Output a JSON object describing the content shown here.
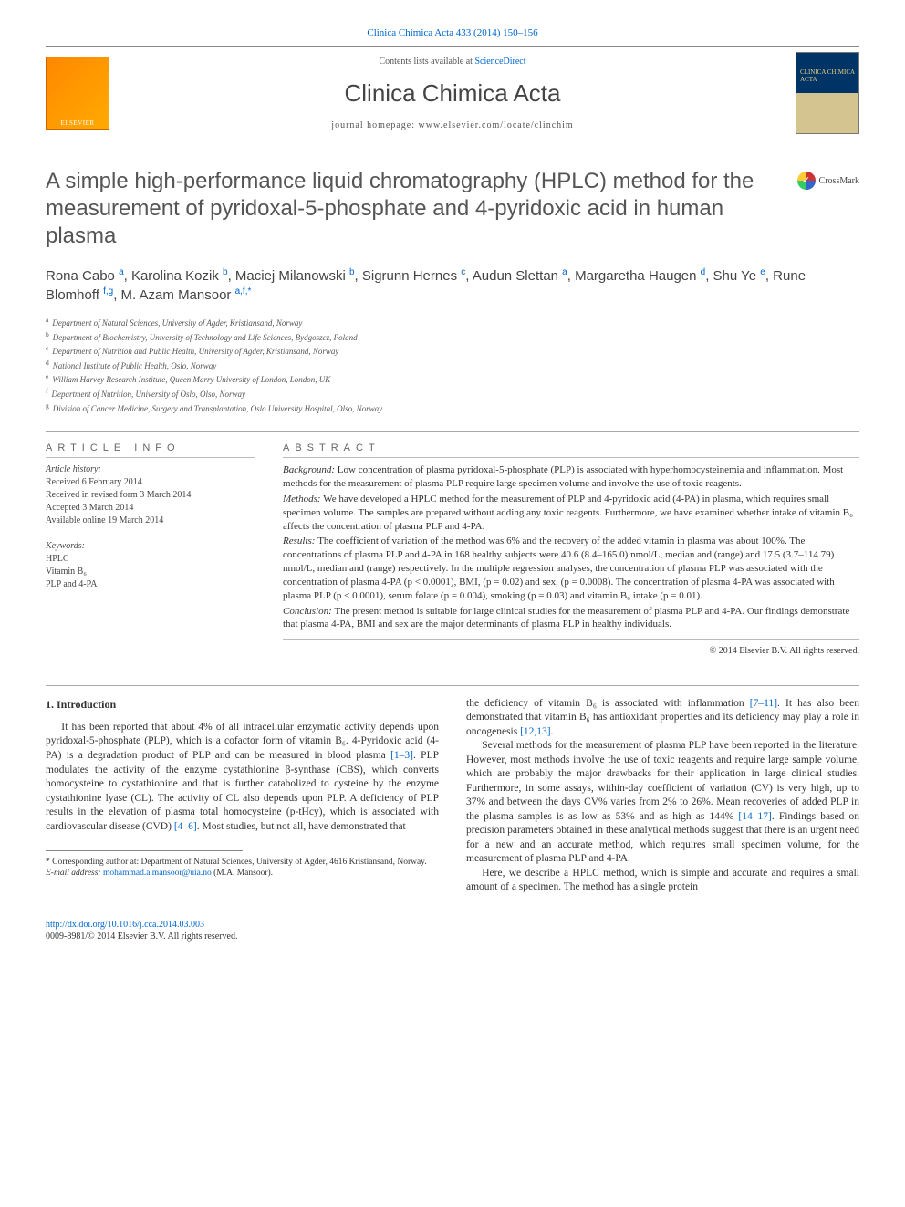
{
  "top_citation": "Clinica Chimica Acta 433 (2014) 150–156",
  "header": {
    "contents_line_pre": "Contents lists available at ",
    "contents_link": "ScienceDirect",
    "journal_name": "Clinica Chimica Acta",
    "homepage_pre": "journal homepage: ",
    "homepage_url": "www.elsevier.com/locate/clinchim"
  },
  "crossmark_label": "CrossMark",
  "title": "A simple high-performance liquid chromatography (HPLC) method for the measurement of pyridoxal-5-phosphate and 4-pyridoxic acid in human plasma",
  "authors_html": "Rona Cabo <sup>a</sup>, Karolina Kozik <sup>b</sup>, Maciej Milanowski <sup>b</sup>, Sigrunn Hernes <sup>c</sup>, Audun Slettan <sup>a</sup>, Margaretha Haugen <sup>d</sup>, Shu Ye <sup>e</sup>, Rune Blomhoff <sup>f,g</sup>, M. Azam Mansoor <sup>a,f,*</sup>",
  "affiliations": [
    {
      "sup": "a",
      "text": "Department of Natural Sciences, University of Agder, Kristiansand, Norway"
    },
    {
      "sup": "b",
      "text": "Department of Biochemistry, University of Technology and Life Sciences, Bydgoszcz, Poland"
    },
    {
      "sup": "c",
      "text": "Department of Nutrition and Public Health, University of Agder, Kristiansand, Norway"
    },
    {
      "sup": "d",
      "text": "National Institute of Public Health, Oslo, Norway"
    },
    {
      "sup": "e",
      "text": "William Harvey Research Institute, Queen Marry University of London, London, UK"
    },
    {
      "sup": "f",
      "text": "Department of Nutrition, University of Oslo, Olso, Norway"
    },
    {
      "sup": "g",
      "text": "Division of Cancer Medicine, Surgery and Transplantation, Oslo University Hospital, Olso, Norway"
    }
  ],
  "article_info": {
    "heading": "article info",
    "history_label": "Article history:",
    "history": [
      "Received 6 February 2014",
      "Received in revised form 3 March 2014",
      "Accepted 3 March 2014",
      "Available online 19 March 2014"
    ],
    "keywords_label": "Keywords:",
    "keywords": [
      "HPLC",
      "Vitamin B₆",
      "PLP and 4-PA"
    ]
  },
  "abstract": {
    "heading": "abstract",
    "background_label": "Background: ",
    "background": "Low concentration of plasma pyridoxal-5-phosphate (PLP) is associated with hyperhomocysteinemia and inflammation. Most methods for the measurement of plasma PLP require large specimen volume and involve the use of toxic reagents.",
    "methods_label": "Methods: ",
    "methods": "We have developed a HPLC method for the measurement of PLP and 4-pyridoxic acid (4-PA) in plasma, which requires small specimen volume. The samples are prepared without adding any toxic reagents. Furthermore, we have examined whether intake of vitamin B₆ affects the concentration of plasma PLP and 4-PA.",
    "results_label": "Results: ",
    "results": "The coefficient of variation of the method was 6% and the recovery of the added vitamin in plasma was about 100%. The concentrations of plasma PLP and 4-PA in 168 healthy subjects were 40.6 (8.4–165.0) nmol/L, median and (range) and 17.5 (3.7–114.79) nmol/L, median and (range) respectively. In the multiple regression analyses, the concentration of plasma PLP was associated with the concentration of plasma 4-PA (p < 0.0001), BMI, (p = 0.02) and sex, (p = 0.0008). The concentration of plasma 4-PA was associated with plasma PLP (p < 0.0001), serum folate (p = 0.004), smoking (p = 0.03) and vitamin B₆ intake (p = 0.01).",
    "conclusion_label": "Conclusion: ",
    "conclusion": "The present method is suitable for large clinical studies for the measurement of plasma PLP and 4-PA. Our findings demonstrate that plasma 4-PA, BMI and sex are the major determinants of plasma PLP in healthy individuals.",
    "copyright": "© 2014 Elsevier B.V. All rights reserved."
  },
  "body": {
    "intro_heading": "1. Introduction",
    "left_p1_pre": "It has been reported that about 4% of all intracellular enzymatic activity depends upon pyridoxal-5-phosphate (PLP), which is a cofactor form of vitamin B₆. 4-Pyridoxic acid (4-PA) is a degradation product of PLP and can be measured in blood plasma ",
    "left_ref1": "[1–3]",
    "left_p1_mid": ". PLP modulates the activity of the enzyme cystathionine β-synthase (CBS), which converts homocysteine to cystathionine and that is further catabolized to cysteine by the enzyme cystathionine lyase (CL). The activity of CL also depends upon PLP. A deficiency of PLP results in the elevation of plasma total homocysteine (p-tHcy), which is associated with cardiovascular disease (CVD) ",
    "left_ref2": "[4–6]",
    "left_p1_post": ". Most studies, but not all, have demonstrated that",
    "right_p1_pre": "the deficiency of vitamin B₆ is associated with inflammation ",
    "right_ref1": "[7–11]",
    "right_p1_mid": ". It has also been demonstrated that vitamin B₆ has antioxidant properties and its deficiency may play a role in oncogenesis ",
    "right_ref2": "[12,13]",
    "right_p1_post": ".",
    "right_p2_pre": "Several methods for the measurement of plasma PLP have been reported in the literature. However, most methods involve the use of toxic reagents and require large sample volume, which are probably the major drawbacks for their application in large clinical studies. Furthermore, in some assays, within-day coefficient of variation (CV) is very high, up to 37% and between the days CV% varies from 2% to 26%. Mean recoveries of added PLP in the plasma samples is as low as 53% and as high as 144% ",
    "right_ref3": "[14–17]",
    "right_p2_post": ". Findings based on precision parameters obtained in these analytical methods suggest that there is an urgent need for a new and an accurate method, which requires small specimen volume, for the measurement of plasma PLP and 4-PA.",
    "right_p3": "Here, we describe a HPLC method, which is simple and accurate and requires a small amount of a specimen. The method has a single protein"
  },
  "footnote": {
    "corr": "* Corresponding author at: Department of Natural Sciences, University of Agder, 4616 Kristiansand, Norway.",
    "email_label": "E-mail address: ",
    "email": "mohammad.a.mansoor@uia.no",
    "email_post": " (M.A. Mansoor)."
  },
  "bottom": {
    "doi": "http://dx.doi.org/10.1016/j.cca.2014.03.003",
    "issn": "0009-8981/© 2014 Elsevier B.V. All rights reserved."
  }
}
